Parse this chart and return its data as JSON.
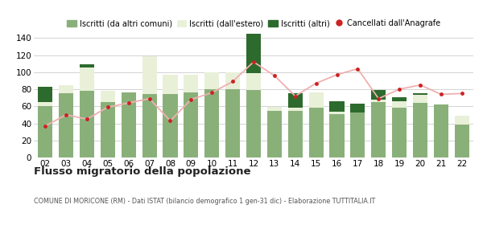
{
  "years": [
    "02",
    "03",
    "04",
    "05",
    "06",
    "07",
    "08",
    "09",
    "10",
    "11",
    "12",
    "13",
    "14",
    "15",
    "16",
    "17",
    "18",
    "19",
    "20",
    "21",
    "22"
  ],
  "iscritti_altri_comuni": [
    60,
    75,
    78,
    65,
    76,
    74,
    74,
    76,
    80,
    80,
    79,
    55,
    55,
    58,
    51,
    53,
    65,
    58,
    64,
    62,
    39
  ],
  "iscritti_estero": [
    5,
    10,
    27,
    13,
    0,
    45,
    23,
    21,
    20,
    20,
    20,
    4,
    3,
    18,
    3,
    0,
    3,
    8,
    9,
    0,
    10
  ],
  "iscritti_altri": [
    18,
    0,
    4,
    0,
    0,
    0,
    0,
    0,
    0,
    0,
    60,
    0,
    17,
    0,
    12,
    10,
    11,
    5,
    2,
    0,
    0
  ],
  "cancellati": [
    37,
    50,
    45,
    59,
    64,
    69,
    43,
    68,
    76,
    89,
    112,
    96,
    72,
    87,
    97,
    104,
    69,
    80,
    85,
    74,
    75
  ],
  "color_altri_comuni": "#8ab07a",
  "color_estero": "#e8f0d8",
  "color_altri": "#2d6a2d",
  "color_cancellati": "#cc2222",
  "color_line_connect": "#f0b0b0",
  "title": "Flusso migratorio della popolazione",
  "subtitle": "COMUNE DI MORICONE (RM) - Dati ISTAT (bilancio demografico 1 gen-31 dic) - Elaborazione TUTTITALIA.IT",
  "legend_labels": [
    "Iscritti (da altri comuni)",
    "Iscritti (dall'estero)",
    "Iscritti (altri)",
    "Cancellati dall'Anagrafe"
  ],
  "ylim": [
    0,
    145
  ],
  "yticks": [
    0,
    20,
    40,
    60,
    80,
    100,
    120,
    140
  ],
  "background_color": "#ffffff",
  "grid_color": "#cccccc"
}
